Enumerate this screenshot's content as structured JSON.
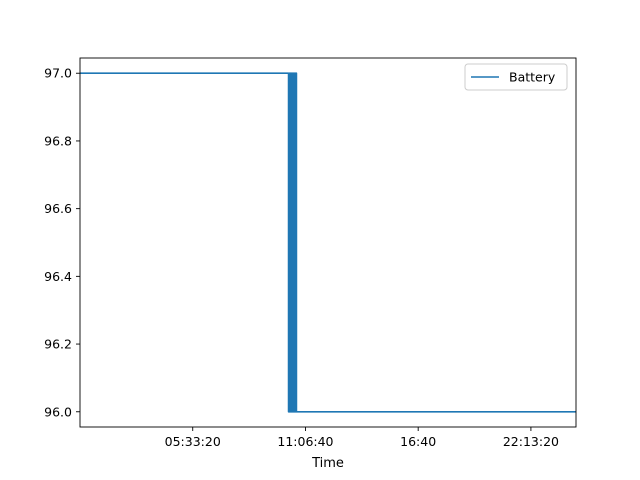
{
  "chart_data": {
    "type": "line",
    "title": "",
    "xlabel": "Time",
    "ylabel": "",
    "grid": false,
    "legend_position": "top-right",
    "xlim": [
      0,
      88000
    ],
    "ylim": [
      95.955,
      97.045
    ],
    "x_ticks": [
      {
        "value": 20000,
        "label": "05:33:20"
      },
      {
        "value": 40000,
        "label": "11:06:40"
      },
      {
        "value": 60000,
        "label": "16:40"
      },
      {
        "value": 80000,
        "label": "22:13:20"
      }
    ],
    "y_ticks": [
      {
        "value": 96.0,
        "label": "96.0"
      },
      {
        "value": 96.2,
        "label": "96.2"
      },
      {
        "value": 96.4,
        "label": "96.4"
      },
      {
        "value": 96.6,
        "label": "96.6"
      },
      {
        "value": 96.8,
        "label": "96.8"
      },
      {
        "value": 97.0,
        "label": "97.0"
      }
    ],
    "series": [
      {
        "name": "Battery",
        "color": "#1f77b4",
        "x": [
          0,
          37000,
          37000,
          37100,
          37100,
          37200,
          37200,
          37300,
          37300,
          37400,
          37400,
          37500,
          37500,
          37600,
          37600,
          37700,
          37700,
          37800,
          37800,
          37900,
          37900,
          38000,
          38000,
          38100,
          38100,
          38200,
          38200,
          38300,
          38300,
          38400,
          38400,
          38500,
          38500,
          88000
        ],
        "y": [
          97.0,
          97.0,
          96.0,
          96.0,
          97.0,
          97.0,
          96.0,
          96.0,
          97.0,
          97.0,
          96.0,
          96.0,
          97.0,
          97.0,
          96.0,
          96.0,
          97.0,
          97.0,
          96.0,
          96.0,
          97.0,
          97.0,
          96.0,
          96.0,
          97.0,
          97.0,
          96.0,
          96.0,
          97.0,
          97.0,
          96.0,
          96.0,
          96.0,
          96.0
        ]
      }
    ]
  }
}
